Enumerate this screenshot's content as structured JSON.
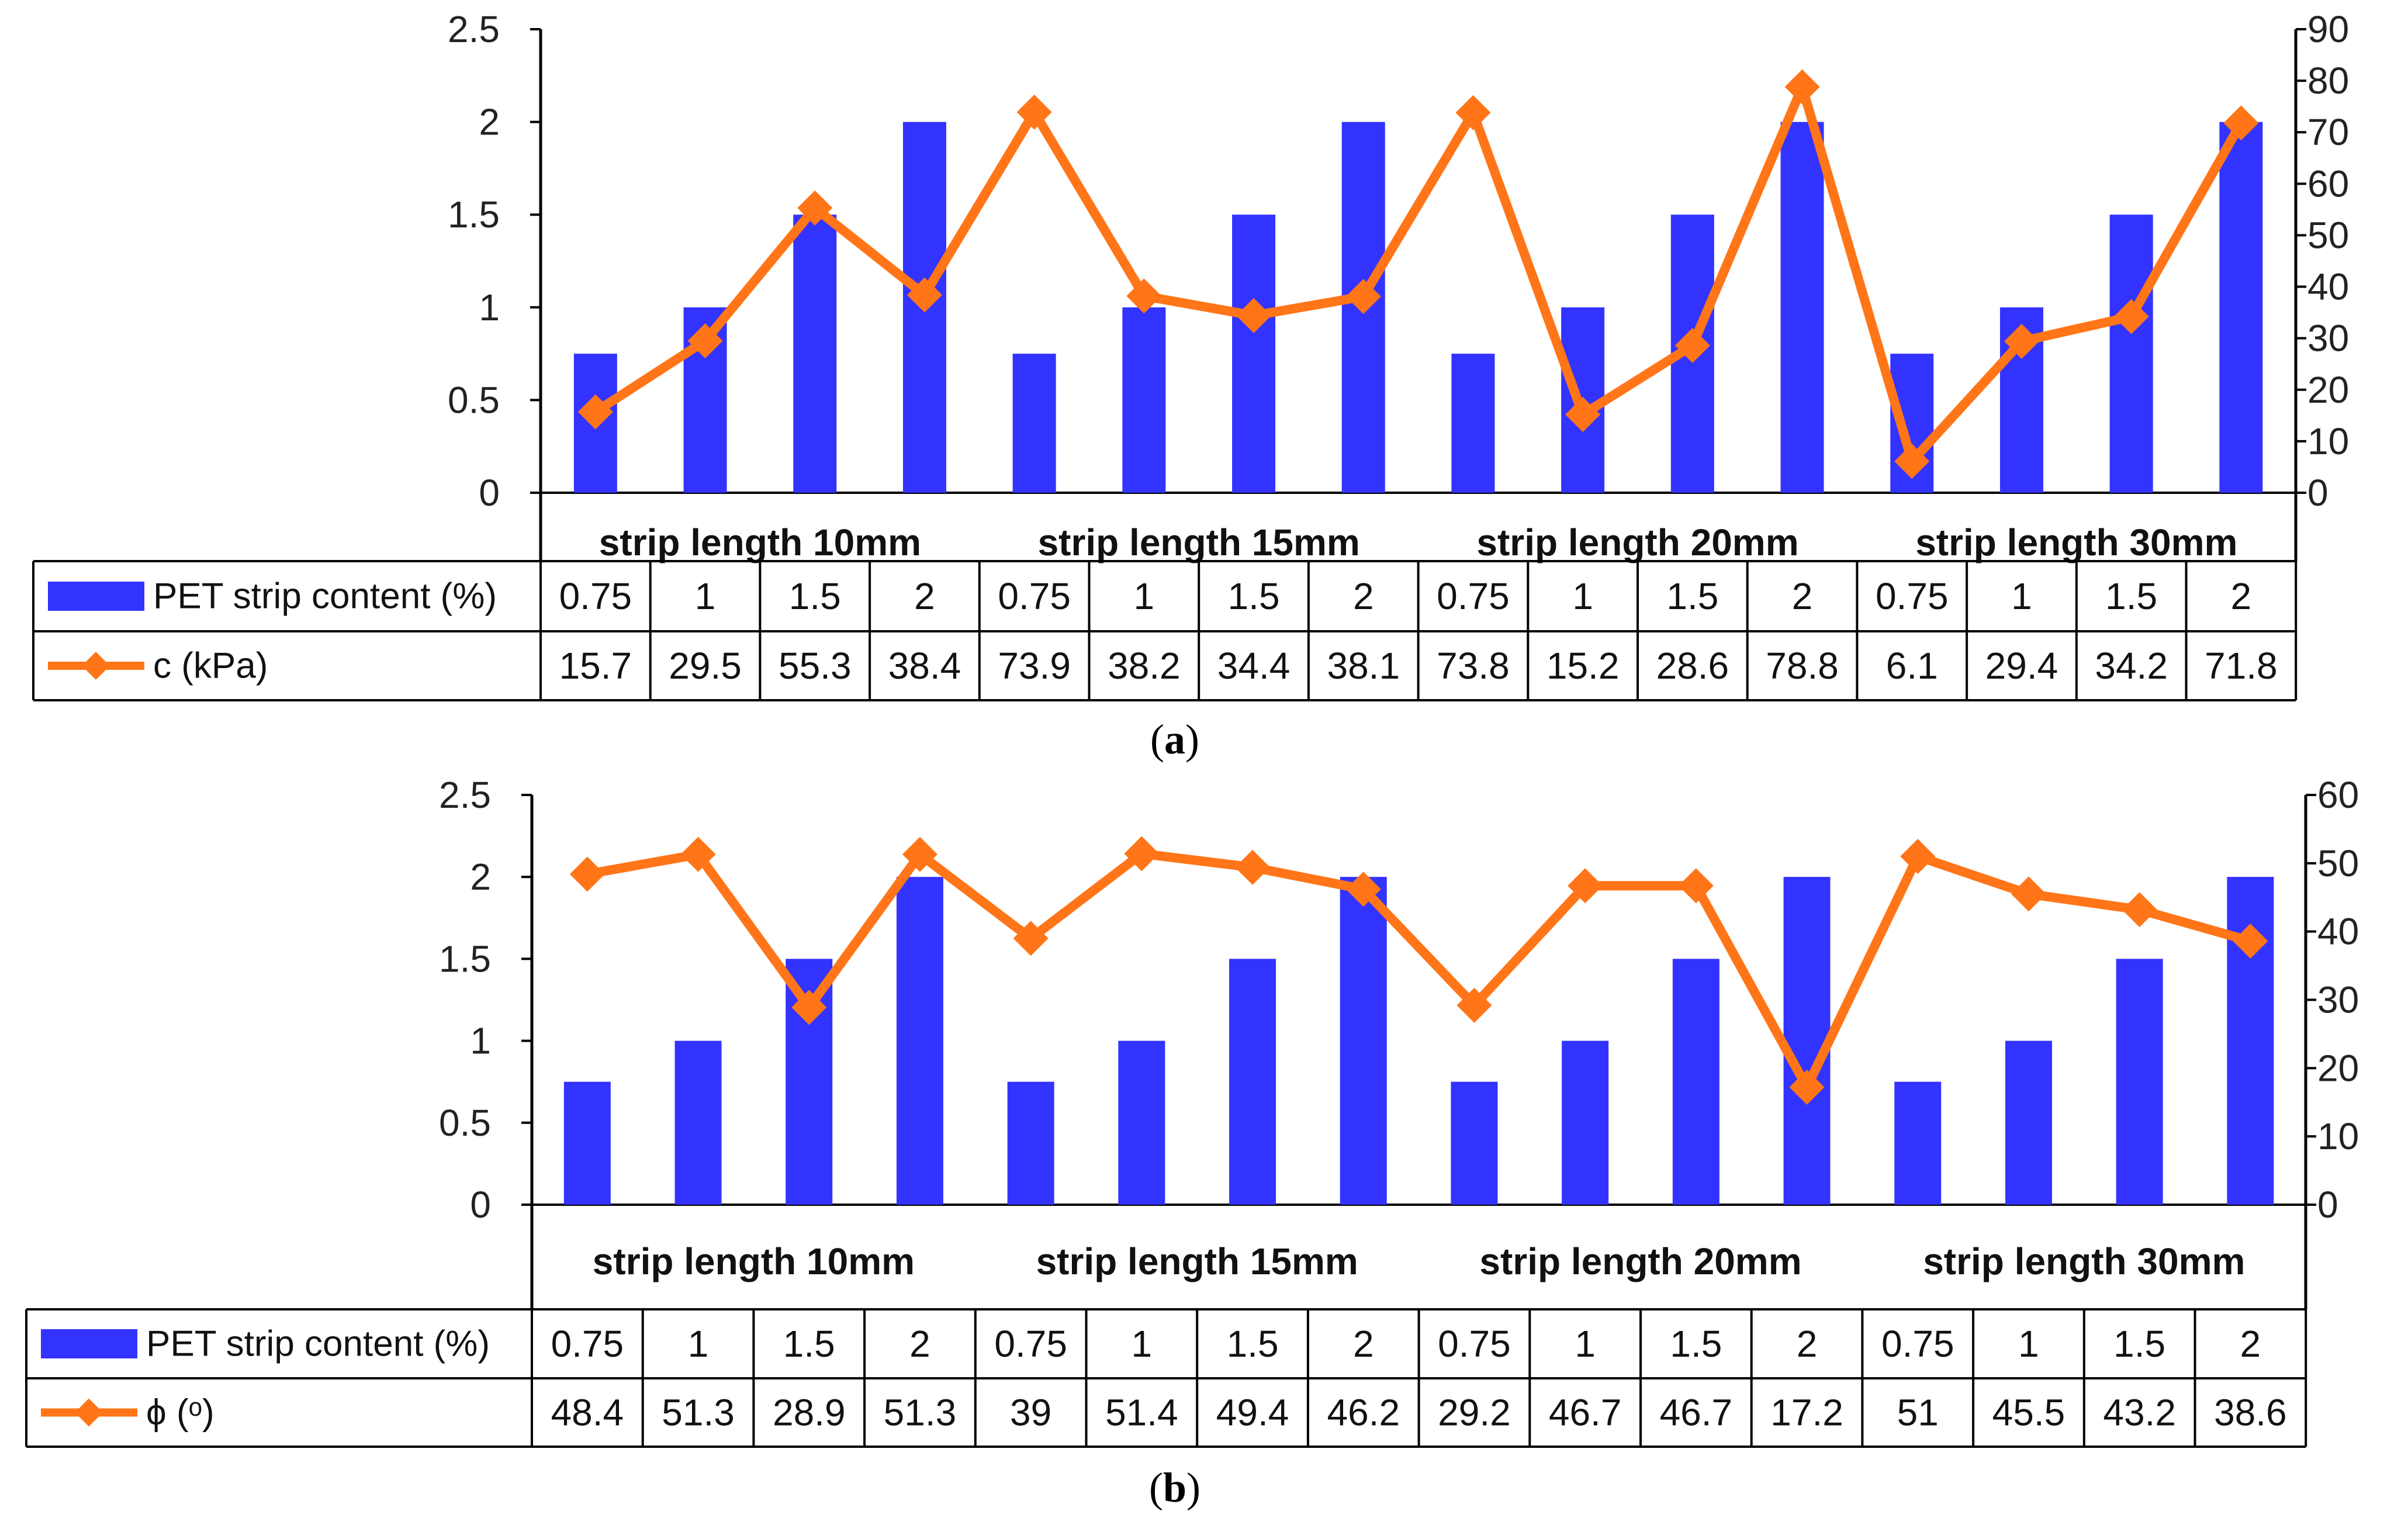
{
  "colors": {
    "bar": "#3333FF",
    "line": "#FF7518",
    "axis": "#000000"
  },
  "chart_data": [
    {
      "type": "bar",
      "panel_label": "a",
      "groups": [
        "strip length 10mm",
        "strip length 15mm",
        "strip length 20mm",
        "strip length 30mm"
      ],
      "categories": [
        "0.75",
        "1",
        "1.5",
        "2",
        "0.75",
        "1",
        "1.5",
        "2",
        "0.75",
        "1",
        "1.5",
        "2",
        "0.75",
        "1",
        "1.5",
        "2"
      ],
      "y_left": {
        "ticks": [
          "0",
          "0.5",
          "1",
          "1.5",
          "2",
          "2.5"
        ],
        "range": [
          0,
          2.5
        ]
      },
      "y_right": {
        "ticks": [
          "0",
          "10",
          "20",
          "30",
          "40",
          "50",
          "60",
          "70",
          "80",
          "90"
        ],
        "range": [
          0,
          90
        ]
      },
      "grid": false,
      "series": [
        {
          "name": "PET strip content (%)",
          "type": "bar",
          "axis": "left",
          "values": [
            0.75,
            1,
            1.5,
            2,
            0.75,
            1,
            1.5,
            2,
            0.75,
            1,
            1.5,
            2,
            0.75,
            1,
            1.5,
            2
          ],
          "labels": [
            "0.75",
            "1",
            "1.5",
            "2",
            "0.75",
            "1",
            "1.5",
            "2",
            "0.75",
            "1",
            "1.5",
            "2",
            "0.75",
            "1",
            "1.5",
            "2"
          ]
        },
        {
          "name": "c (kPa)",
          "type": "line",
          "marker": "diamond",
          "axis": "right",
          "values": [
            15.7,
            29.5,
            55.3,
            38.4,
            73.9,
            38.2,
            34.4,
            38.1,
            73.8,
            15.2,
            28.6,
            78.8,
            6.1,
            29.4,
            34.2,
            71.8
          ],
          "labels": [
            "15.7",
            "29.5",
            "55.3",
            "38.4",
            "73.9",
            "38.2",
            "34.4",
            "38.1",
            "73.8",
            "15.2",
            "28.6",
            "78.8",
            "6.1",
            "29.4",
            "34.2",
            "71.8"
          ]
        }
      ]
    },
    {
      "type": "bar",
      "panel_label": "b",
      "groups": [
        "strip length 10mm",
        "strip length 15mm",
        "strip length 20mm",
        "strip length 30mm"
      ],
      "categories": [
        "0.75",
        "1",
        "1.5",
        "2",
        "0.75",
        "1",
        "1.5",
        "2",
        "0.75",
        "1",
        "1.5",
        "2",
        "0.75",
        "1",
        "1.5",
        "2"
      ],
      "y_left": {
        "ticks": [
          "0",
          "0.5",
          "1",
          "1.5",
          "2",
          "2.5"
        ],
        "range": [
          0,
          2.5
        ]
      },
      "y_right": {
        "ticks": [
          "0",
          "10",
          "20",
          "30",
          "40",
          "50",
          "60"
        ],
        "range": [
          0,
          60
        ]
      },
      "grid": false,
      "series": [
        {
          "name": "PET strip content (%)",
          "type": "bar",
          "axis": "left",
          "values": [
            0.75,
            1,
            1.5,
            2,
            0.75,
            1,
            1.5,
            2,
            0.75,
            1,
            1.5,
            2,
            0.75,
            1,
            1.5,
            2
          ],
          "labels": [
            "0.75",
            "1",
            "1.5",
            "2",
            "0.75",
            "1",
            "1.5",
            "2",
            "0.75",
            "1",
            "1.5",
            "2",
            "0.75",
            "1",
            "1.5",
            "2"
          ]
        },
        {
          "name": "ϕ (ᵒ)",
          "type": "line",
          "marker": "diamond",
          "axis": "right",
          "values": [
            48.4,
            51.3,
            28.9,
            51.3,
            39,
            51.4,
            49.4,
            46.2,
            29.2,
            46.7,
            46.7,
            17.2,
            51,
            45.5,
            43.2,
            38.6
          ],
          "labels": [
            "48.4",
            "51.3",
            "28.9",
            "51.3",
            "39",
            "51.4",
            "49.4",
            "46.2",
            "29.2",
            "46.7",
            "46.7",
            "17.2",
            "51",
            "45.5",
            "43.2",
            "38.6"
          ]
        }
      ]
    }
  ]
}
